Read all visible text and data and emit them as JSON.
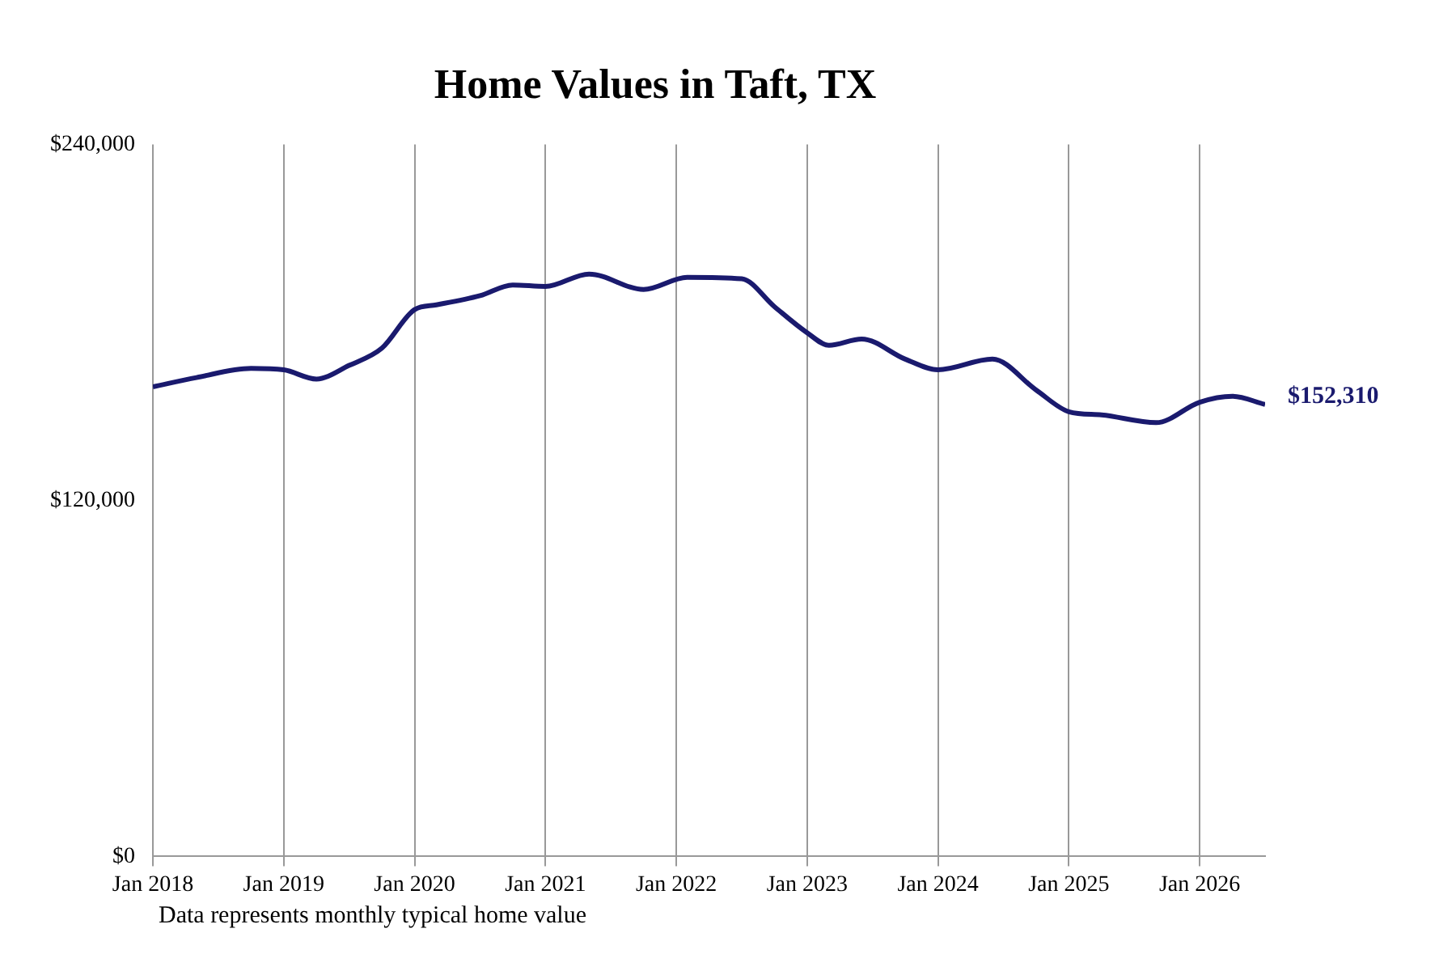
{
  "chart_data": {
    "type": "line",
    "title": "Home Values in Taft, TX",
    "x": [
      "2018-01",
      "2018-05",
      "2018-10",
      "2019-01",
      "2019-04",
      "2019-07",
      "2019-10",
      "2020-01",
      "2020-03",
      "2020-07",
      "2020-10",
      "2021-01",
      "2021-05",
      "2021-10",
      "2022-02",
      "2022-07",
      "2022-10",
      "2023-01",
      "2023-03",
      "2023-06",
      "2023-10",
      "2024-01",
      "2024-06",
      "2024-10",
      "2025-01",
      "2025-04",
      "2025-09",
      "2026-01",
      "2026-04",
      "2026-07"
    ],
    "series": [
      {
        "color": "#1a1a6e",
        "values": [
          158300,
          161400,
          164500,
          164000,
          160900,
          165500,
          171300,
          184300,
          185900,
          189000,
          192600,
          192100,
          196300,
          191100,
          195200,
          194700,
          185300,
          176500,
          172300,
          174400,
          167600,
          164000,
          167600,
          157200,
          149900,
          148800,
          146200,
          153100,
          155100,
          152310
        ]
      }
    ],
    "xticks": [
      {
        "value": "2018-01",
        "label": "Jan 2018"
      },
      {
        "value": "2019-01",
        "label": "Jan 2019"
      },
      {
        "value": "2020-01",
        "label": "Jan 2020"
      },
      {
        "value": "2021-01",
        "label": "Jan 2021"
      },
      {
        "value": "2022-01",
        "label": "Jan 2022"
      },
      {
        "value": "2023-01",
        "label": "Jan 2023"
      },
      {
        "value": "2024-01",
        "label": "Jan 2024"
      },
      {
        "value": "2025-01",
        "label": "Jan 2025"
      },
      {
        "value": "2026-01",
        "label": "Jan 2026"
      }
    ],
    "xlim": [
      "2018-01",
      "2026-07"
    ],
    "ylim": [
      0,
      240000
    ],
    "yticks": [
      {
        "value": 0,
        "label": "$0"
      },
      {
        "value": 120000,
        "label": "$120,000"
      },
      {
        "value": 240000,
        "label": "$240,000"
      }
    ],
    "grid": "x",
    "legend": false,
    "marker": "none",
    "line_style": "solid",
    "annotations": [
      {
        "text": "$152,310",
        "x": "2026-07",
        "y": 152310
      },
      "Data represents monthly typical home value"
    ]
  }
}
